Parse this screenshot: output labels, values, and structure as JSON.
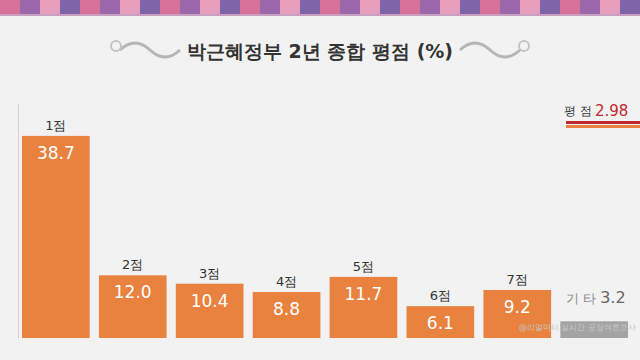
{
  "chart_data": {
    "type": "bar",
    "title": "박근혜정부 2년 종합 평점 (%)",
    "categories": [
      "1점",
      "2점",
      "3점",
      "4점",
      "5점",
      "6점",
      "7점",
      "기 타"
    ],
    "values": [
      38.7,
      12.0,
      10.4,
      8.8,
      11.7,
      6.1,
      9.2,
      3.2
    ],
    "value_labels": [
      "38.7",
      "12.0",
      "10.4",
      "8.8",
      "11.7",
      "6.1",
      "9.2",
      "3.2"
    ],
    "colors": [
      "#e8823e",
      "#e8823e",
      "#e8823e",
      "#e8823e",
      "#e8823e",
      "#e8823e",
      "#e8823e",
      "#a3a3a3"
    ],
    "ylim": [
      0,
      45
    ],
    "data_labels": true,
    "tick_labels": false,
    "annotation": {
      "label": "평 점",
      "value": 2.98
    },
    "source": "@리얼미터 실시간 공정여론조사"
  }
}
